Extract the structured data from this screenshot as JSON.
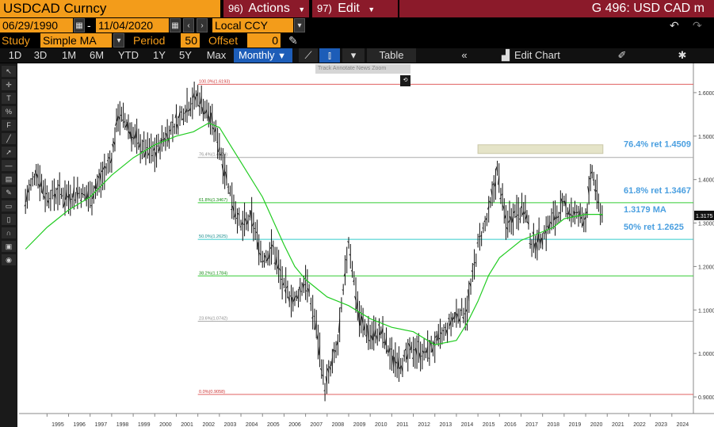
{
  "header": {
    "ticker": "USDCAD Curncy",
    "actions_num": "96)",
    "actions_label": "Actions",
    "edit_num": "97)",
    "edit_label": "Edit",
    "title": "G 496: USD CAD m"
  },
  "range": {
    "start": "06/29/1990",
    "dash": "-",
    "end": "11/04/2020",
    "currency": "Local CCY"
  },
  "study": {
    "label": "Study",
    "value": "Simple MA",
    "period_label": "Period",
    "period_value": "50",
    "offset_label": "Offset",
    "offset_value": "0"
  },
  "toolbar": {
    "periods": [
      "1D",
      "3D",
      "1M",
      "6M",
      "YTD",
      "1Y",
      "5Y",
      "Max"
    ],
    "frequency": "Monthly",
    "table_label": "Table",
    "edit_chart_label": "Edit Chart"
  },
  "floatbar": {
    "track": "Track",
    "annotate": "Annotate",
    "news": "News",
    "zoom": "Zoom",
    "reset": "Reset"
  },
  "chart_data": {
    "type": "line",
    "series": [
      {
        "name": "USDCAD",
        "color": "#000000"
      },
      {
        "name": "1.3179 MA",
        "color": "#22cc22"
      }
    ],
    "x_ticks": [
      "1995",
      "1996",
      "1997",
      "1998",
      "1999",
      "2000",
      "2001",
      "2002",
      "2003",
      "2004",
      "2005",
      "2006",
      "2007",
      "2008",
      "2009",
      "2010",
      "2011",
      "2012",
      "2013",
      "2014",
      "2015",
      "2016",
      "2017",
      "2018",
      "2019",
      "2020",
      "2021",
      "2022",
      "2023",
      "2024"
    ],
    "y_ticks": [
      "1.6000",
      "1.5000",
      "1.4000",
      "1.3000",
      "1.2000",
      "1.1000",
      "1.0000",
      "0.9000"
    ],
    "ylim": [
      0.88,
      1.66
    ],
    "price_points": [
      [
        1994.0,
        1.35
      ],
      [
        1994.5,
        1.42
      ],
      [
        1995.0,
        1.36
      ],
      [
        1995.5,
        1.37
      ],
      [
        1996.0,
        1.36
      ],
      [
        1996.5,
        1.37
      ],
      [
        1997.0,
        1.36
      ],
      [
        1997.5,
        1.4
      ],
      [
        1998.0,
        1.45
      ],
      [
        1998.3,
        1.55
      ],
      [
        1998.7,
        1.53
      ],
      [
        1999.0,
        1.5
      ],
      [
        1999.5,
        1.47
      ],
      [
        2000.0,
        1.46
      ],
      [
        2000.5,
        1.5
      ],
      [
        2001.0,
        1.53
      ],
      [
        2001.5,
        1.57
      ],
      [
        2002.0,
        1.59
      ],
      [
        2002.5,
        1.55
      ],
      [
        2003.0,
        1.48
      ],
      [
        2003.5,
        1.37
      ],
      [
        2004.0,
        1.29
      ],
      [
        2004.5,
        1.31
      ],
      [
        2005.0,
        1.22
      ],
      [
        2005.5,
        1.24
      ],
      [
        2006.0,
        1.15
      ],
      [
        2006.5,
        1.12
      ],
      [
        2007.0,
        1.17
      ],
      [
        2007.5,
        1.06
      ],
      [
        2007.9,
        0.92
      ],
      [
        2008.5,
        1.02
      ],
      [
        2009.0,
        1.26
      ],
      [
        2009.5,
        1.08
      ],
      [
        2010.0,
        1.04
      ],
      [
        2010.5,
        1.05
      ],
      [
        2011.0,
        0.99
      ],
      [
        2011.5,
        0.98
      ],
      [
        2012.0,
        1.01
      ],
      [
        2012.5,
        1.0
      ],
      [
        2013.0,
        1.02
      ],
      [
        2013.5,
        1.05
      ],
      [
        2014.0,
        1.09
      ],
      [
        2014.5,
        1.1
      ],
      [
        2015.0,
        1.25
      ],
      [
        2015.5,
        1.32
      ],
      [
        2015.9,
        1.42
      ],
      [
        2016.3,
        1.3
      ],
      [
        2016.8,
        1.33
      ],
      [
        2017.2,
        1.33
      ],
      [
        2017.5,
        1.25
      ],
      [
        2018.0,
        1.27
      ],
      [
        2018.5,
        1.31
      ],
      [
        2019.0,
        1.34
      ],
      [
        2019.5,
        1.32
      ],
      [
        2020.0,
        1.31
      ],
      [
        2020.3,
        1.42
      ],
      [
        2020.6,
        1.34
      ],
      [
        2020.85,
        1.31
      ]
    ],
    "ma_points": [
      [
        1994.0,
        1.24
      ],
      [
        1995.0,
        1.29
      ],
      [
        1996.0,
        1.33
      ],
      [
        1997.0,
        1.36
      ],
      [
        1998.0,
        1.41
      ],
      [
        1999.0,
        1.45
      ],
      [
        2000.0,
        1.48
      ],
      [
        2001.0,
        1.5
      ],
      [
        2001.8,
        1.51
      ],
      [
        2002.5,
        1.53
      ],
      [
        2003.0,
        1.52
      ],
      [
        2003.5,
        1.48
      ],
      [
        2004.0,
        1.44
      ],
      [
        2005.0,
        1.36
      ],
      [
        2006.0,
        1.25
      ],
      [
        2006.5,
        1.2
      ],
      [
        2007.0,
        1.17
      ],
      [
        2008.0,
        1.13
      ],
      [
        2009.0,
        1.11
      ],
      [
        2010.0,
        1.08
      ],
      [
        2011.0,
        1.06
      ],
      [
        2012.0,
        1.05
      ],
      [
        2013.0,
        1.02
      ],
      [
        2014.0,
        1.03
      ],
      [
        2014.5,
        1.07
      ],
      [
        2015.0,
        1.12
      ],
      [
        2015.5,
        1.18
      ],
      [
        2016.0,
        1.22
      ],
      [
        2017.0,
        1.26
      ],
      [
        2017.5,
        1.27
      ],
      [
        2018.0,
        1.28
      ],
      [
        2018.5,
        1.29
      ],
      [
        2019.0,
        1.31
      ],
      [
        2020.0,
        1.32
      ],
      [
        2020.8,
        1.32
      ]
    ],
    "fib_levels": [
      {
        "label": "100.0%(1.6193)",
        "value": 1.6193,
        "color": "#e06060"
      },
      {
        "label": "76.4%(1.4509)",
        "value": 1.4509,
        "color": "#aaaaaa"
      },
      {
        "label": "61.8%(1.3467)",
        "value": 1.3467,
        "color": "#33cc33"
      },
      {
        "label": "50.0%(1.2625)",
        "value": 1.2625,
        "color": "#33cccc"
      },
      {
        "label": "38.2%(1.1784)",
        "value": 1.1784,
        "color": "#33cc33"
      },
      {
        "label": "23.6%(1.0742)",
        "value": 1.0742,
        "color": "#aaaaaa"
      },
      {
        "label": "0.0%(0.9058)",
        "value": 0.9058,
        "color": "#e06060"
      }
    ],
    "annotations": [
      {
        "text": "76.4% ret 1.4509",
        "value": 1.475
      },
      {
        "text": "61.8% ret 1.3467",
        "value": 1.368
      },
      {
        "text": "1.3179 MA",
        "value": 1.325
      },
      {
        "text": "50% ret 1.2625",
        "value": 1.285
      }
    ],
    "last_value": "1.3175",
    "highlight_box": {
      "x_from": 2015.0,
      "x_to": 2020.8,
      "y_from": 1.46,
      "y_to": 1.48,
      "color": "#e5e4c8"
    }
  }
}
